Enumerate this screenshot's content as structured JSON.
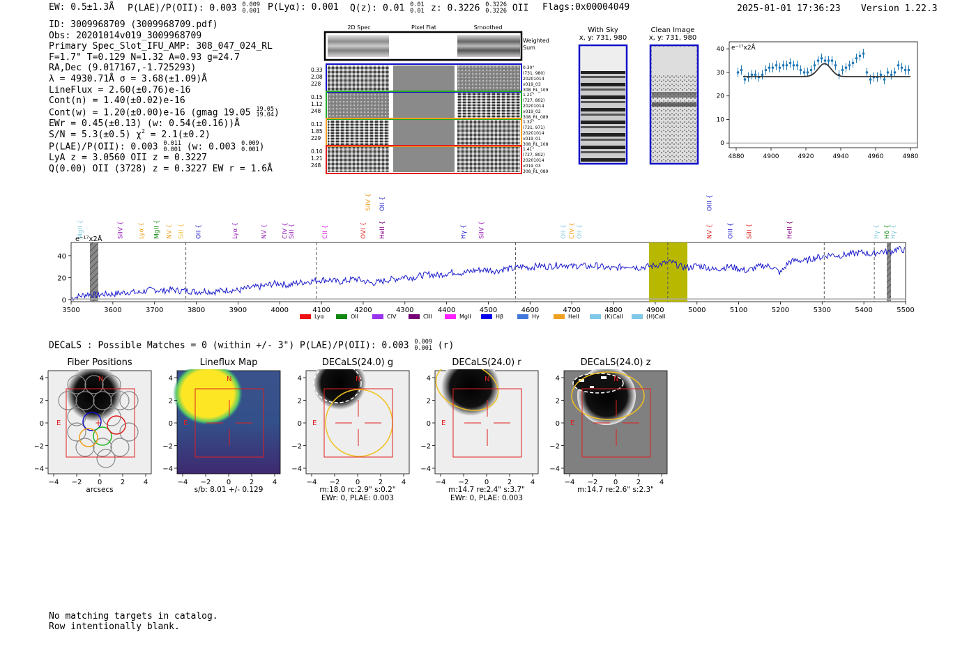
{
  "header": {
    "ew": "EW: 0.5±1.3Å",
    "plae_label": "P(LAE)/P(OII):",
    "plae_val": "0.003",
    "plae_hi": "0.009",
    "plae_lo": "0.001",
    "plya": "P(Lyα): 0.001",
    "qz": "Q(z): 0.01",
    "qz_hi": "0.01",
    "qz_lo": "0.01",
    "z_label": "z: 0.3226",
    "z_hi": "0.3226",
    "z_lo": "0.3226",
    "z_line": "OII",
    "flags": "Flags:0x00004049",
    "datetime": "2025-01-01 17:36:23",
    "version": "Version 1.22.3"
  },
  "info": {
    "id": "ID: 3009968709 (3009968709.pdf)",
    "obs": "Obs: 20201014v019_3009968709",
    "primary": "Primary Spec_Slot_IFU_AMP: 308_047_024_RL",
    "fwhm": "F=1.7\"  T=0.129  N=1.32  A=0.93  g=24.7",
    "radec": "RA,Dec (9.017167,-1.725293)",
    "lambda": "λ = 4930.71Å  σ = 3.68(±1.09)Å",
    "lineflux": "LineFlux = 2.60(±0.76)e-16",
    "contn": "Cont(n) = 1.40(±0.02)e-16",
    "contw_pre": "Cont(w) = 1.20(±0.00)e-16 (gmag 19.05",
    "contw_hi": "19.05",
    "contw_lo": "19.04",
    "contw_post": ")",
    "ewr": "EWr = 0.45(±0.13) (w: 0.54(±0.16))Å",
    "sn": "S/N = 5.3(±0.5)  χ",
    "sn_sup": "2",
    "sn_post": " = 2.1(±0.2)",
    "plae_pre": "P(LAE)/P(OII): 0.003",
    "plae_hi": "0.011",
    "plae_lo": "0.001",
    "plae_w": " (w: 0.003",
    "plae_w_hi": "0.009",
    "plae_w_lo": "0.001",
    "plae_post": ")",
    "lya": "LyA z = 3.0560  OII z = 0.3227",
    "q": "Q(0.00) OII (3728) z = 0.3227  EW r = 1.6Å"
  },
  "cutouts": {
    "col_titles": [
      "2D Spec",
      "Pixel Flat",
      "Smoothed"
    ],
    "weighted_sum": [
      "Weighted",
      "Sum"
    ],
    "rows": [
      {
        "left": [
          "0.33",
          "2.08",
          "228"
        ],
        "right": [
          "0.30\"",
          "(731, 980)",
          "20201014",
          "v019_03",
          "308_RL_109"
        ],
        "color": "#1010c8"
      },
      {
        "left": [
          "0.15",
          "1.12",
          "248"
        ],
        "right": [
          "1.21\"",
          "(727, 802)",
          "20201014",
          "v019_02",
          "308_RL_089"
        ],
        "color": "#22aa22"
      },
      {
        "left": [
          "0.12",
          "1.85",
          "229"
        ],
        "right": [
          "1.32\"",
          "(731, 971)",
          "20201014",
          "v019_01",
          "308_RL_108"
        ],
        "color": "#f0a020"
      },
      {
        "left": [
          "0.10",
          "1.21",
          "248"
        ],
        "right": [
          "1.41\"",
          "(727, 802)",
          "20201014",
          "v019_03",
          "308_RL_089"
        ],
        "color": "#e02020"
      }
    ]
  },
  "sky": {
    "with_sky": [
      "With Sky",
      "x, y: 731, 980"
    ],
    "clean": [
      "Clean Image",
      "x, y: 731, 980"
    ]
  },
  "zoom_chart": {
    "type": "scatter",
    "unit_label": "e⁻¹⁷x2Å",
    "xlim": [
      4876,
      4984
    ],
    "ylim": [
      -2,
      43
    ],
    "xticks": [
      4880,
      4900,
      4920,
      4940,
      4960,
      4980
    ],
    "yticks": [
      0,
      10,
      20,
      30,
      40
    ],
    "points": [
      [
        4881,
        30
      ],
      [
        4883,
        31
      ],
      [
        4885,
        27
      ],
      [
        4887,
        28
      ],
      [
        4889,
        29
      ],
      [
        4891,
        29
      ],
      [
        4893,
        28
      ],
      [
        4895,
        29
      ],
      [
        4897,
        31
      ],
      [
        4899,
        32
      ],
      [
        4901,
        32
      ],
      [
        4903,
        33
      ],
      [
        4905,
        32
      ],
      [
        4907,
        33
      ],
      [
        4909,
        33
      ],
      [
        4911,
        34
      ],
      [
        4913,
        33
      ],
      [
        4915,
        33
      ],
      [
        4917,
        31
      ],
      [
        4919,
        30
      ],
      [
        4921,
        30
      ],
      [
        4923,
        31
      ],
      [
        4925,
        33
      ],
      [
        4927,
        35
      ],
      [
        4929,
        36
      ],
      [
        4931,
        35
      ],
      [
        4933,
        35
      ],
      [
        4935,
        35
      ],
      [
        4937,
        33
      ],
      [
        4939,
        29
      ],
      [
        4941,
        31
      ],
      [
        4943,
        32
      ],
      [
        4945,
        33
      ],
      [
        4947,
        34
      ],
      [
        4949,
        36
      ],
      [
        4951,
        37
      ],
      [
        4953,
        38
      ],
      [
        4955,
        30
      ],
      [
        4957,
        27
      ],
      [
        4959,
        28
      ],
      [
        4961,
        28
      ],
      [
        4963,
        29
      ],
      [
        4965,
        27
      ],
      [
        4967,
        30
      ],
      [
        4969,
        29
      ],
      [
        4971,
        30
      ],
      [
        4973,
        33
      ],
      [
        4975,
        32
      ],
      [
        4977,
        31
      ],
      [
        4979,
        31
      ]
    ],
    "model": {
      "cont": 28.2,
      "amp": 5.5,
      "center": 4930.7,
      "sigma": 3.68
    }
  },
  "chart_data": {
    "type": "line",
    "unit_label": "e⁻¹⁷x2Å",
    "xlim": [
      3500,
      5500
    ],
    "ylim": [
      -2,
      52
    ],
    "xticks": [
      3500,
      3600,
      3700,
      3800,
      3900,
      4000,
      4100,
      4200,
      4300,
      4400,
      4500,
      4600,
      4700,
      4800,
      4900,
      5000,
      5100,
      5200,
      5300,
      5400,
      5500
    ],
    "yticks": [
      0,
      20,
      40
    ],
    "line_labels_top": [
      {
        "label": "OIII",
        "x": 5030,
        "color": "#1a1acc"
      },
      {
        "label": "SiIV",
        "x": 4212,
        "color": "#f0a020"
      },
      {
        "label": "OII",
        "x": 4245,
        "color": "#1a1acc"
      }
    ],
    "line_labels": [
      {
        "label": "MgII",
        "x": 3522,
        "color": "#80c8e0"
      },
      {
        "label": "SiIV",
        "x": 3618,
        "color": "#9922bb"
      },
      {
        "label": "Lyα",
        "x": 3668,
        "color": "#f0a020"
      },
      {
        "label": "MgII",
        "x": 3705,
        "color": "#118811"
      },
      {
        "label": "NV",
        "x": 3735,
        "color": "#f0a020"
      },
      {
        "label": "SiII",
        "x": 3763,
        "color": "#f0c040"
      },
      {
        "label": "OII",
        "x": 3805,
        "color": "#1a1acc"
      },
      {
        "label": "Lyα",
        "x": 3893,
        "color": "#9922bb"
      },
      {
        "label": "NV",
        "x": 3962,
        "color": "#9922bb"
      },
      {
        "label": "CIV",
        "x": 4012,
        "color": "#9922bb"
      },
      {
        "label": "SiII",
        "x": 4028,
        "color": "#9922bb"
      },
      {
        "label": "CII",
        "x": 4108,
        "color": "#e020e0"
      },
      {
        "label": "OVI",
        "x": 4200,
        "color": "#e02020"
      },
      {
        "label": "HeII",
        "x": 4245,
        "color": "#800080"
      },
      {
        "label": "Hγ",
        "x": 4440,
        "color": "#1a1acc"
      },
      {
        "label": "SiIV",
        "x": 4483,
        "color": "#9922bb"
      },
      {
        "label": "OII",
        "x": 4680,
        "color": "#80c8e0"
      },
      {
        "label": "CIV",
        "x": 4700,
        "color": "#f0a020"
      },
      {
        "label": "OII",
        "x": 4718,
        "color": "#80c8e0"
      },
      {
        "label": "NV",
        "x": 5030,
        "color": "#e02020"
      },
      {
        "label": "OIII",
        "x": 5080,
        "color": "#1a1acc"
      },
      {
        "label": "SiII",
        "x": 5125,
        "color": "#e02020"
      },
      {
        "label": "HeII",
        "x": 5222,
        "color": "#800080"
      },
      {
        "label": "Hγ",
        "x": 5430,
        "color": "#80c8e0"
      },
      {
        "label": "Hδ",
        "x": 5455,
        "color": "#118811"
      },
      {
        "label": "Hγ",
        "x": 5470,
        "color": "#80c8e0"
      }
    ],
    "spectrum": [
      [
        3500,
        1
      ],
      [
        3520,
        3
      ],
      [
        3540,
        5
      ],
      [
        3560,
        4
      ],
      [
        3580,
        5
      ],
      [
        3600,
        5
      ],
      [
        3620,
        6
      ],
      [
        3640,
        7
      ],
      [
        3660,
        6
      ],
      [
        3680,
        8
      ],
      [
        3700,
        9
      ],
      [
        3720,
        8
      ],
      [
        3740,
        9
      ],
      [
        3760,
        8
      ],
      [
        3780,
        8
      ],
      [
        3800,
        7
      ],
      [
        3820,
        8
      ],
      [
        3840,
        7
      ],
      [
        3860,
        8
      ],
      [
        3880,
        9
      ],
      [
        3900,
        8
      ],
      [
        3920,
        10
      ],
      [
        3940,
        11
      ],
      [
        3960,
        12
      ],
      [
        3980,
        14
      ],
      [
        4000,
        15
      ],
      [
        4020,
        13
      ],
      [
        4040,
        15
      ],
      [
        4060,
        16
      ],
      [
        4080,
        17
      ],
      [
        4100,
        18
      ],
      [
        4120,
        18
      ],
      [
        4140,
        16
      ],
      [
        4160,
        17
      ],
      [
        4180,
        19
      ],
      [
        4200,
        17
      ],
      [
        4220,
        15
      ],
      [
        4240,
        16
      ],
      [
        4260,
        18
      ],
      [
        4280,
        19
      ],
      [
        4300,
        21
      ],
      [
        4320,
        20
      ],
      [
        4340,
        22
      ],
      [
        4360,
        23
      ],
      [
        4380,
        22
      ],
      [
        4400,
        24
      ],
      [
        4420,
        25
      ],
      [
        4440,
        24
      ],
      [
        4460,
        26
      ],
      [
        4480,
        27
      ],
      [
        4500,
        27
      ],
      [
        4520,
        26
      ],
      [
        4540,
        28
      ],
      [
        4560,
        28
      ],
      [
        4580,
        30
      ],
      [
        4600,
        29
      ],
      [
        4620,
        31
      ],
      [
        4640,
        30
      ],
      [
        4660,
        31
      ],
      [
        4680,
        32
      ],
      [
        4700,
        30
      ],
      [
        4720,
        31
      ],
      [
        4740,
        30
      ],
      [
        4760,
        31
      ],
      [
        4780,
        29
      ],
      [
        4800,
        28
      ],
      [
        4820,
        30
      ],
      [
        4840,
        31
      ],
      [
        4860,
        29
      ],
      [
        4880,
        30
      ],
      [
        4900,
        31
      ],
      [
        4920,
        33
      ],
      [
        4940,
        34
      ],
      [
        4960,
        30
      ],
      [
        4980,
        29
      ],
      [
        5000,
        31
      ],
      [
        5020,
        30
      ],
      [
        5040,
        27
      ],
      [
        5060,
        29
      ],
      [
        5080,
        30
      ],
      [
        5100,
        28
      ],
      [
        5120,
        26
      ],
      [
        5140,
        29
      ],
      [
        5160,
        31
      ],
      [
        5180,
        30
      ],
      [
        5200,
        24
      ],
      [
        5220,
        34
      ],
      [
        5240,
        36
      ],
      [
        5260,
        35
      ],
      [
        5280,
        38
      ],
      [
        5300,
        39
      ],
      [
        5320,
        41
      ],
      [
        5340,
        40
      ],
      [
        5360,
        41
      ],
      [
        5380,
        42
      ],
      [
        5400,
        43
      ],
      [
        5420,
        41
      ],
      [
        5440,
        44
      ],
      [
        5460,
        43
      ],
      [
        5480,
        46
      ],
      [
        5500,
        45
      ]
    ],
    "hatched_regions": [
      [
        3545,
        3565
      ],
      [
        5455,
        5465
      ]
    ],
    "highlight_region": [
      4885,
      4977
    ],
    "dashed_lines": [
      3775,
      4088,
      4565,
      4930,
      5305,
      5425
    ],
    "legend": [
      {
        "label": "Lyα",
        "color": "#ee1111"
      },
      {
        "label": "OII",
        "color": "#118811"
      },
      {
        "label": "CIV",
        "color": "#9933ee"
      },
      {
        "label": "CIII",
        "color": "#770077"
      },
      {
        "label": "MgII",
        "color": "#ff22ff"
      },
      {
        "label": "Hβ",
        "color": "#0000ee"
      },
      {
        "label": "Hγ",
        "color": "#4477dd"
      },
      {
        "label": "HeII",
        "color": "#f0a020"
      },
      {
        "label": "(K)CaII",
        "color": "#80c8e8"
      },
      {
        "label": "(H)CaII",
        "color": "#80c8e8"
      }
    ]
  },
  "decals": {
    "summary_pre": "DECaLS : Possible Matches = 0 (within +/- 3\")  P(LAE)/P(OII): 0.003",
    "summary_hi": "0.009",
    "summary_lo": "0.001",
    "summary_post": " (r)",
    "panels": [
      {
        "title": "Fiber Positions",
        "sub": [
          "arcsecs"
        ]
      },
      {
        "title": "Lineflux Map",
        "sub": [
          "s/b: 8.01 +/- 0.129"
        ]
      },
      {
        "title": "DECaLS(24.0) g",
        "sub": [
          "m:18.0 rc:2.9\"  s:0.2\"",
          "EWr: 0, PLAE: 0.003"
        ]
      },
      {
        "title": "DECaLS(24.0) r",
        "sub": [
          "m:14.7  re:2.4\"  s:3.7\"",
          "EWr: 0, PLAE: 0.003"
        ]
      },
      {
        "title": "DECaLS(24.0) z",
        "sub": [
          "m:14.7  re:2.6\"  s:2.3\""
        ]
      }
    ],
    "axis_ticks": [
      "−4",
      "−2",
      "0",
      "2",
      "4"
    ],
    "compass_n": "N",
    "compass_e": "E"
  },
  "footer": {
    "line1": "No matching targets in catalog.",
    "line2": "Row intentionally blank."
  }
}
